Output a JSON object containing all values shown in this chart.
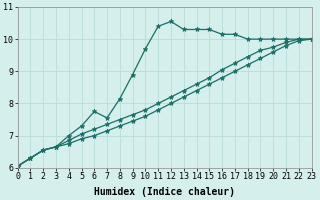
{
  "xlabel": "Humidex (Indice chaleur)",
  "bg_color": "#d4efec",
  "grid_color": "#b8ddd9",
  "line_color": "#1a6e65",
  "x_values": [
    0,
    1,
    2,
    3,
    4,
    5,
    6,
    7,
    8,
    9,
    10,
    11,
    12,
    13,
    14,
    15,
    16,
    17,
    18,
    19,
    20,
    21,
    22,
    23
  ],
  "line1": [
    6.05,
    6.3,
    6.55,
    6.65,
    7.0,
    7.3,
    7.75,
    7.55,
    8.15,
    8.9,
    9.7,
    10.4,
    10.55,
    10.3,
    10.3,
    10.3,
    10.15,
    10.15,
    10.0,
    10.0,
    10.0,
    10.0,
    10.0,
    10.0
  ],
  "line2": [
    6.05,
    6.3,
    6.55,
    6.65,
    6.85,
    7.05,
    7.2,
    7.35,
    7.5,
    7.65,
    7.8,
    8.0,
    8.2,
    8.4,
    8.6,
    8.8,
    9.05,
    9.25,
    9.45,
    9.65,
    9.75,
    9.9,
    10.0,
    10.0
  ],
  "line3": [
    6.05,
    6.3,
    6.55,
    6.65,
    6.75,
    6.9,
    7.0,
    7.15,
    7.3,
    7.45,
    7.6,
    7.8,
    8.0,
    8.2,
    8.4,
    8.6,
    8.8,
    9.0,
    9.2,
    9.4,
    9.6,
    9.8,
    9.95,
    10.0
  ],
  "ylim": [
    6.0,
    11.0
  ],
  "xlim": [
    0,
    23
  ],
  "yticks": [
    6,
    7,
    8,
    9,
    10,
    11
  ],
  "xticks": [
    0,
    1,
    2,
    3,
    4,
    5,
    6,
    7,
    8,
    9,
    10,
    11,
    12,
    13,
    14,
    15,
    16,
    17,
    18,
    19,
    20,
    21,
    22,
    23
  ],
  "marker": "*",
  "markersize": 3.5,
  "linewidth": 0.9,
  "fontsize_label": 7,
  "fontsize_tick": 6
}
